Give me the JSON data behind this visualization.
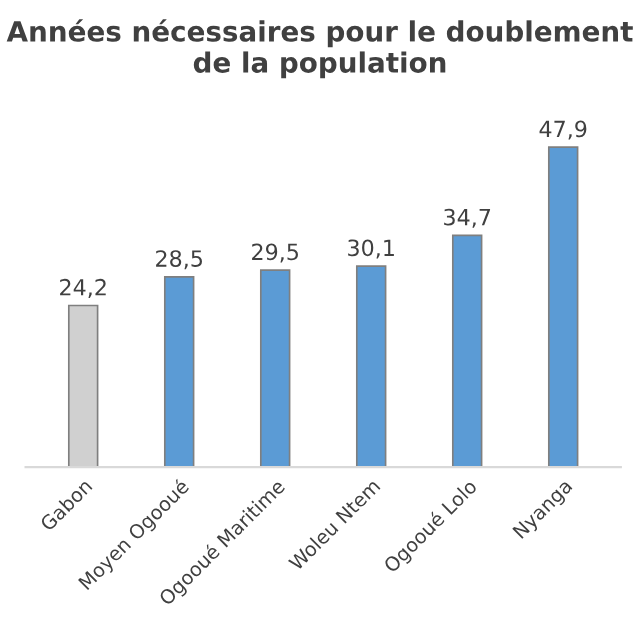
{
  "chart_data": {
    "type": "bar",
    "title": "Années nécessaires pour le doublement de la population",
    "categories": [
      "Gabon",
      "Moyen Ogooué",
      "Ogooué Maritime",
      "Woleu Ntem",
      "Ogooué Lolo",
      "Nyanga"
    ],
    "values": [
      24.2,
      28.5,
      29.5,
      30.1,
      34.7,
      47.9
    ],
    "value_labels": [
      "24,2",
      "28,5",
      "29,5",
      "30,1",
      "34,7",
      "47,9"
    ],
    "colors": [
      "#d0d0d0",
      "#5b9bd5",
      "#5b9bd5",
      "#5b9bd5",
      "#5b9bd5",
      "#5b9bd5"
    ],
    "grid": false,
    "legend": false
  }
}
